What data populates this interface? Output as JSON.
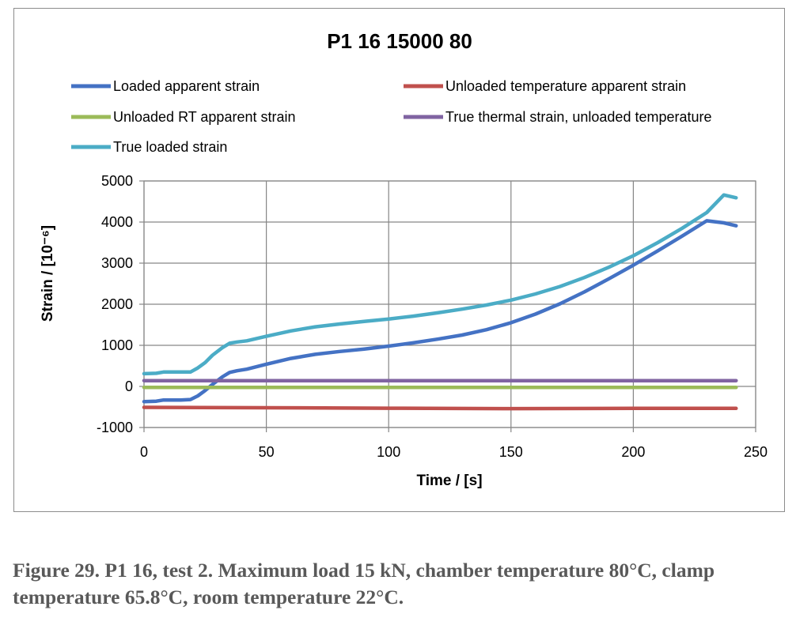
{
  "caption": "Figure 29. P1 16, test 2.  Maximum load 15 kN, chamber temperature 80°C, clamp temperature 65.8°C, room temperature 22°C.",
  "chart_data": {
    "type": "line",
    "title": "P1 16 15000 80",
    "xlabel": "Time / [s]",
    "ylabel": "Strain / [10⁻⁶]",
    "xlim": [
      0,
      250
    ],
    "ylim": [
      -1000,
      5000
    ],
    "xticks": [
      0,
      50,
      100,
      150,
      200,
      250
    ],
    "yticks": [
      -1000,
      0,
      1000,
      2000,
      3000,
      4000,
      5000
    ],
    "grid": true,
    "legend_position": "top",
    "series": [
      {
        "name": "Loaded apparent strain",
        "color": "#4472C4",
        "x": [
          0,
          5,
          8,
          15,
          19,
          22,
          25,
          28,
          32,
          35,
          38,
          42,
          50,
          60,
          70,
          80,
          90,
          100,
          110,
          120,
          130,
          140,
          150,
          160,
          170,
          180,
          190,
          200,
          210,
          220,
          230,
          237,
          242
        ],
        "y": [
          -370,
          -360,
          -330,
          -330,
          -320,
          -230,
          -100,
          50,
          230,
          340,
          380,
          420,
          540,
          680,
          780,
          850,
          910,
          980,
          1060,
          1150,
          1250,
          1380,
          1550,
          1760,
          2010,
          2300,
          2620,
          2950,
          3300,
          3660,
          4030,
          3980,
          3910
        ]
      },
      {
        "name": "Unloaded temperature apparent strain",
        "color": "#C0504D",
        "x": [
          0,
          50,
          100,
          150,
          200,
          242
        ],
        "y": [
          -510,
          -520,
          -530,
          -540,
          -535,
          -535
        ]
      },
      {
        "name": "Unloaded RT apparent strain",
        "color": "#9BBB59",
        "x": [
          0,
          242
        ],
        "y": [
          -25,
          -25
        ]
      },
      {
        "name": "True thermal strain, unloaded temperature",
        "color": "#8064A2",
        "x": [
          0,
          242
        ],
        "y": [
          140,
          140
        ]
      },
      {
        "name": "True loaded strain",
        "color": "#4BACC6",
        "x": [
          0,
          5,
          8,
          15,
          19,
          22,
          25,
          28,
          32,
          35,
          38,
          42,
          50,
          60,
          70,
          80,
          90,
          100,
          110,
          120,
          130,
          140,
          150,
          160,
          170,
          180,
          190,
          200,
          210,
          220,
          230,
          237,
          242
        ],
        "y": [
          310,
          320,
          350,
          350,
          350,
          450,
          580,
          760,
          940,
          1050,
          1080,
          1110,
          1220,
          1350,
          1450,
          1520,
          1580,
          1640,
          1710,
          1790,
          1880,
          1980,
          2100,
          2250,
          2430,
          2650,
          2900,
          3180,
          3500,
          3850,
          4230,
          4660,
          4590
        ]
      }
    ]
  }
}
